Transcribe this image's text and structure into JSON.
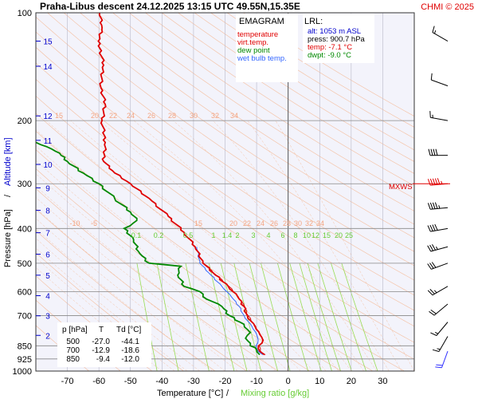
{
  "header": {
    "title": "Praha-Libus   descent   24.12.2025 13:15 UTC  49.55N,15.35E",
    "copyright": "CHMI © 2025"
  },
  "legend": {
    "heading": "EMAGRAM",
    "items": [
      {
        "label": "temperature",
        "color": "#e00000"
      },
      {
        "label": "virt.temp.",
        "color": "#e00000"
      },
      {
        "label": "dew point",
        "color": "#008800"
      },
      {
        "label": "wet bulb temp.",
        "color": "#3366ff"
      }
    ]
  },
  "lrl": {
    "heading": "LRL:",
    "alt": "alt: 1053 m ASL",
    "press": "press: 900.7 hPa",
    "temp": "temp: -7.1 °C",
    "dwpt": "dwpt: -9.0 °C",
    "colors": {
      "alt": "#0000cc",
      "press": "#000000",
      "temp": "#e00000",
      "dwpt": "#008800"
    }
  },
  "table": {
    "header": [
      "p [hPa]",
      "T",
      "Td [°C]"
    ],
    "rows": [
      [
        "500",
        "-27.0",
        "-44.1"
      ],
      [
        "700",
        "-12.9",
        "-18.6"
      ],
      [
        "850",
        "-9.4",
        "-12.0"
      ]
    ]
  },
  "mxws_label": "MXWS",
  "chart_data": {
    "type": "line",
    "title": "Praha-Libus   descent   24.12.2025 13:15 UTC  49.55N,15.35E",
    "xlabel": "Temperature [°C]",
    "xlabel_separator": " / ",
    "xlabel_secondary": "Mixing ratio [g/kg]",
    "ylabel": "Pressure [hPa]",
    "ylabel_separator": " / ",
    "ylabel_secondary": "Altitude [km]",
    "xlim": [
      -80,
      40
    ],
    "ylim_pressure": [
      100,
      1000
    ],
    "y_scale": "log",
    "x_ticks": [
      -70,
      -60,
      -50,
      -40,
      -30,
      -20,
      -10,
      0,
      10,
      20,
      30
    ],
    "x_tick_labels": [
      "-70",
      "-60",
      "-50",
      "-40",
      "-30",
      "-20",
      "-10",
      "0",
      "10",
      "20",
      "30"
    ],
    "p_ticks": [
      100,
      200,
      300,
      400,
      500,
      600,
      700,
      850,
      925,
      1000
    ],
    "p_tick_labels": [
      "100",
      "200",
      "300",
      "400",
      "500",
      "600",
      "700",
      "850",
      "925",
      "1000"
    ],
    "altitude_ticks_km": [
      2,
      3,
      4,
      5,
      6,
      7,
      8,
      9,
      10,
      11,
      12,
      14,
      15
    ],
    "altitude_pressures": [
      795,
      701,
      616,
      540,
      472,
      411,
      356,
      308,
      265,
      227,
      194,
      141,
      120
    ],
    "altitude_tick_labels": [
      "2",
      "3",
      "4",
      "5",
      "6",
      "7",
      "8",
      "9",
      "10",
      "11",
      "12",
      "14",
      "15"
    ],
    "mixing_ratio_labels_upper": [
      "0.1",
      "0.2",
      "0.5",
      "1",
      "1.4",
      "2",
      "3",
      "4",
      "6",
      "8",
      "10",
      "12",
      "15",
      "20",
      "25"
    ],
    "mixing_ratio_values": [
      0.1,
      0.2,
      0.5,
      1,
      1.4,
      2,
      3,
      4,
      6,
      8,
      10,
      12,
      15,
      20,
      25
    ],
    "theta_labels_upper": [
      "15",
      "20",
      "22",
      "24",
      "26",
      "28",
      "30",
      "32",
      "34"
    ],
    "theta_labels_lower": [
      "-10",
      "-5",
      "15",
      "20",
      "22",
      "24",
      "26",
      "28",
      "30",
      "32",
      "34"
    ],
    "series": [
      {
        "name": "temperature",
        "color": "#e00000",
        "points": [
          [
            -59.8,
            100
          ],
          [
            -59.0,
            110
          ],
          [
            -60.2,
            120
          ],
          [
            -58.5,
            140
          ],
          [
            -59.5,
            160
          ],
          [
            -58.0,
            180
          ],
          [
            -59.0,
            200
          ],
          [
            -58.0,
            230
          ],
          [
            -58.5,
            260
          ],
          [
            -55.0,
            280
          ],
          [
            -50.0,
            300
          ],
          [
            -44.0,
            330
          ],
          [
            -38.0,
            370
          ],
          [
            -33.0,
            410
          ],
          [
            -29.5,
            450
          ],
          [
            -27.0,
            500
          ],
          [
            -23.0,
            540
          ],
          [
            -19.0,
            580
          ],
          [
            -16.0,
            620
          ],
          [
            -14.0,
            660
          ],
          [
            -12.9,
            700
          ],
          [
            -10.5,
            750
          ],
          [
            -9.0,
            790
          ],
          [
            -8.0,
            820
          ],
          [
            -9.4,
            850
          ],
          [
            -9.0,
            880
          ],
          [
            -7.5,
            900
          ]
        ]
      },
      {
        "name": "virt.temp.",
        "color": "#e00000",
        "points": [
          [
            -27.0,
            500
          ],
          [
            -22.8,
            540
          ],
          [
            -18.8,
            580
          ],
          [
            -15.8,
            620
          ],
          [
            -13.8,
            660
          ],
          [
            -12.7,
            700
          ],
          [
            -10.3,
            750
          ],
          [
            -8.8,
            790
          ],
          [
            -7.8,
            820
          ],
          [
            -9.2,
            850
          ],
          [
            -8.8,
            880
          ],
          [
            -7.2,
            900
          ]
        ]
      },
      {
        "name": "dew point",
        "color": "#008800",
        "points": [
          [
            -80,
            230
          ],
          [
            -75,
            240
          ],
          [
            -72,
            250
          ],
          [
            -70,
            260
          ],
          [
            -65,
            280
          ],
          [
            -60,
            300
          ],
          [
            -55,
            330
          ],
          [
            -50,
            360
          ],
          [
            -48,
            380
          ],
          [
            -52,
            400
          ],
          [
            -49,
            430
          ],
          [
            -47,
            470
          ],
          [
            -44.1,
            500
          ],
          [
            -34,
            510
          ],
          [
            -35,
            540
          ],
          [
            -33,
            580
          ],
          [
            -28,
            600
          ],
          [
            -27,
            620
          ],
          [
            -21,
            660
          ],
          [
            -18.6,
            700
          ],
          [
            -14,
            740
          ],
          [
            -12.0,
            780
          ],
          [
            -13.5,
            810
          ],
          [
            -12.0,
            850
          ],
          [
            -10.0,
            870
          ],
          [
            -9.0,
            900
          ]
        ]
      },
      {
        "name": "wet bulb temp.",
        "color": "#3366ff",
        "points": [
          [
            -29,
            450
          ],
          [
            -28.0,
            500
          ],
          [
            -24.5,
            540
          ],
          [
            -21,
            580
          ],
          [
            -18,
            620
          ],
          [
            -15.5,
            660
          ],
          [
            -14.0,
            700
          ],
          [
            -11.5,
            750
          ],
          [
            -10.0,
            790
          ],
          [
            -9.5,
            820
          ],
          [
            -10.2,
            850
          ],
          [
            -9.5,
            880
          ],
          [
            -8.0,
            900
          ]
        ]
      }
    ],
    "wind_barbs": [
      {
        "p": 120,
        "dir": 300,
        "speed_kt": 15
      },
      {
        "p": 160,
        "dir": 290,
        "speed_kt": 10
      },
      {
        "p": 200,
        "dir": 280,
        "speed_kt": 15
      },
      {
        "p": 250,
        "dir": 270,
        "speed_kt": 40
      },
      {
        "p": 300,
        "dir": 265,
        "speed_kt": 55
      },
      {
        "p": 350,
        "dir": 265,
        "speed_kt": 45
      },
      {
        "p": 400,
        "dir": 260,
        "speed_kt": 40
      },
      {
        "p": 450,
        "dir": 255,
        "speed_kt": 35
      },
      {
        "p": 500,
        "dir": 250,
        "speed_kt": 30
      },
      {
        "p": 580,
        "dir": 240,
        "speed_kt": 25
      },
      {
        "p": 650,
        "dir": 230,
        "speed_kt": 20
      },
      {
        "p": 730,
        "dir": 220,
        "speed_kt": 15
      },
      {
        "p": 800,
        "dir": 210,
        "speed_kt": 15
      },
      {
        "p": 880,
        "dir": 200,
        "speed_kt": 20
      }
    ],
    "grid": true,
    "legend_position": "top-right"
  }
}
